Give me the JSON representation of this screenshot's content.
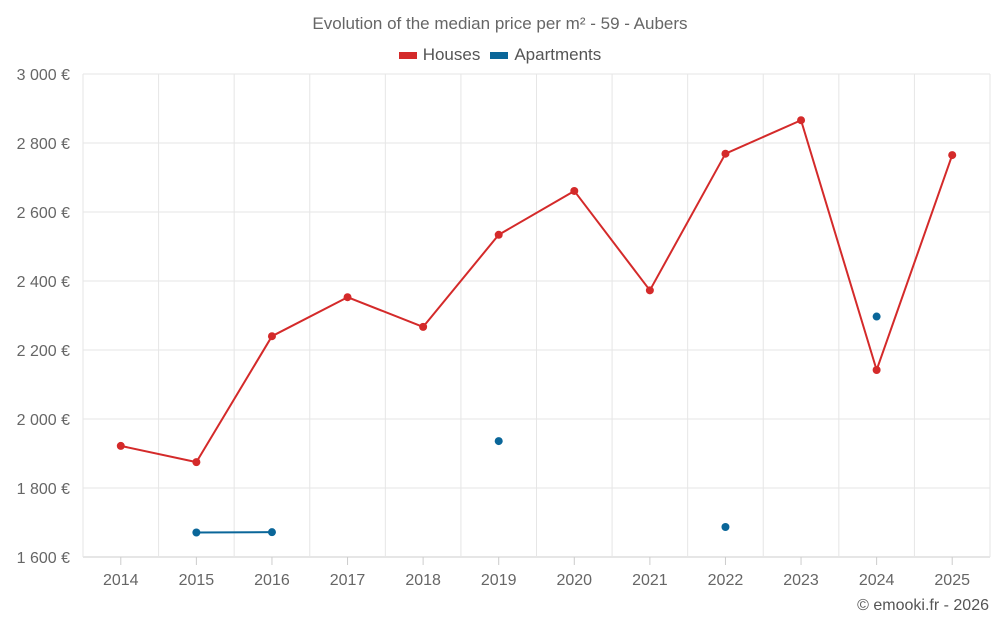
{
  "chart_data": {
    "type": "line",
    "title": "Evolution of the median price per m² - 59 - Aubers",
    "xlabel": "",
    "ylabel": "",
    "categories": [
      "2014",
      "2015",
      "2016",
      "2017",
      "2018",
      "2019",
      "2020",
      "2021",
      "2022",
      "2023",
      "2024",
      "2025"
    ],
    "ylim": [
      1600,
      3000
    ],
    "yticks": [
      {
        "value": 1600,
        "label": "1 600 €"
      },
      {
        "value": 1800,
        "label": "1 800 €"
      },
      {
        "value": 2000,
        "label": "2 000 €"
      },
      {
        "value": 2200,
        "label": "2 200 €"
      },
      {
        "value": 2400,
        "label": "2 400 €"
      },
      {
        "value": 2600,
        "label": "2 600 €"
      },
      {
        "value": 2800,
        "label": "2 800 €"
      },
      {
        "value": 3000,
        "label": "3 000 €"
      }
    ],
    "grid": true,
    "legend_position": "top-center",
    "series": [
      {
        "name": "Houses",
        "color": "#d42a2a",
        "values": [
          1922,
          1875,
          2240,
          2353,
          2267,
          2534,
          2661,
          2373,
          2769,
          2866,
          2142,
          2765
        ]
      },
      {
        "name": "Apartments",
        "color": "#0a6699",
        "values": [
          null,
          1671,
          1672,
          null,
          null,
          1936,
          null,
          null,
          1687,
          null,
          2297,
          null
        ]
      }
    ]
  },
  "credit": "© emooki.fr - 2026"
}
